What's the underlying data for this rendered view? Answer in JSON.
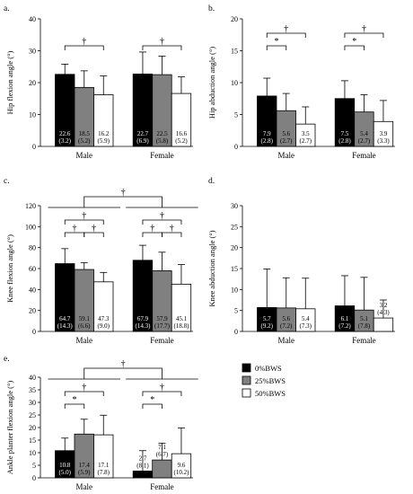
{
  "legend": {
    "series": [
      "0%BWS",
      "25%BWS",
      "50%BWS"
    ],
    "colors": [
      "#000000",
      "#808080",
      "#ffffff"
    ]
  },
  "chart_data": [
    {
      "id": "a",
      "type": "bar",
      "panel_label": "a.",
      "ylabel": "Hip flexion angle (°)",
      "ylim": [
        0,
        40
      ],
      "yticks": [
        0,
        10,
        20,
        30,
        40
      ],
      "categories": [
        "Male",
        "Female"
      ],
      "series": [
        {
          "name": "0%BWS",
          "values": [
            22.6,
            22.7
          ],
          "sd": [
            3.2,
            6.9
          ],
          "labels": [
            "22.6\n(3.2)",
            "22.7\n(6.9)"
          ]
        },
        {
          "name": "25%BWS",
          "values": [
            18.5,
            22.5
          ],
          "sd": [
            5.2,
            5.8
          ],
          "labels": [
            "18.5\n(5.2)",
            "22.5\n(5.8)"
          ]
        },
        {
          "name": "50%BWS",
          "values": [
            16.2,
            16.6
          ],
          "sd": [
            5.9,
            5.2
          ],
          "labels": [
            "16.2\n(5.9)",
            "16.6\n(5.2)"
          ]
        }
      ],
      "annotations": [
        {
          "group": 0,
          "from": 0,
          "to": 2,
          "symbol": "†",
          "level": 0
        },
        {
          "group": 1,
          "from": 0,
          "to": 2,
          "symbol": "†",
          "level": 0
        }
      ]
    },
    {
      "id": "b",
      "type": "bar",
      "panel_label": "b.",
      "ylabel": "Hip abduction angle (°)",
      "ylim": [
        0,
        20
      ],
      "yticks": [
        0,
        5,
        10,
        15,
        20
      ],
      "categories": [
        "Male",
        "Female"
      ],
      "series": [
        {
          "name": "0%BWS",
          "values": [
            7.9,
            7.5
          ],
          "sd": [
            2.8,
            2.8
          ],
          "labels": [
            "7.9\n(2.8)",
            "7.5\n(2.8)"
          ]
        },
        {
          "name": "25%BWS",
          "values": [
            5.6,
            5.4
          ],
          "sd": [
            2.7,
            2.7
          ],
          "labels": [
            "5.6\n(2.7)",
            "5.4\n(2.7)"
          ]
        },
        {
          "name": "50%BWS",
          "values": [
            3.5,
            3.9
          ],
          "sd": [
            2.7,
            3.3
          ],
          "labels": [
            "3.5\n(2.7)",
            "3.9\n(3.3)"
          ]
        }
      ],
      "annotations": [
        {
          "group": 0,
          "from": 0,
          "to": 1,
          "symbol": "*",
          "level": 0
        },
        {
          "group": 0,
          "from": 0,
          "to": 2,
          "symbol": "†",
          "level": 1
        },
        {
          "group": 1,
          "from": 0,
          "to": 1,
          "symbol": "*",
          "level": 0
        },
        {
          "group": 1,
          "from": 0,
          "to": 2,
          "symbol": "†",
          "level": 1
        }
      ]
    },
    {
      "id": "c",
      "type": "bar",
      "panel_label": "c.",
      "ylabel": "Knee flexion angle (°)",
      "ylim": [
        0,
        120
      ],
      "yticks": [
        0,
        20,
        40,
        60,
        80,
        100,
        120
      ],
      "categories": [
        "Male",
        "Female"
      ],
      "series": [
        {
          "name": "0%BWS",
          "values": [
            64.7,
            67.9
          ],
          "sd": [
            14.3,
            14.3
          ],
          "labels": [
            "64.7\n(14.3)",
            "67.9\n(14.3)"
          ]
        },
        {
          "name": "25%BWS",
          "values": [
            59.1,
            57.9
          ],
          "sd": [
            6.6,
            17.7
          ],
          "labels": [
            "59.1\n(6.6)",
            "57.9\n(17.7)"
          ]
        },
        {
          "name": "50%BWS",
          "values": [
            47.3,
            45.1
          ],
          "sd": [
            9.0,
            18.8
          ],
          "labels": [
            "47.3\n(9.0)",
            "45.1\n(18.8)"
          ]
        }
      ],
      "annotations": [
        {
          "group": 0,
          "from": 0,
          "to": 1,
          "symbol": "†",
          "level": 0
        },
        {
          "group": 0,
          "from": 1,
          "to": 2,
          "symbol": "†",
          "level": 0
        },
        {
          "group": 0,
          "from": 0,
          "to": 2,
          "symbol": "†",
          "level": 1
        },
        {
          "group": 1,
          "from": 0,
          "to": 1,
          "symbol": "†",
          "level": 0
        },
        {
          "group": 1,
          "from": 1,
          "to": 2,
          "symbol": "†",
          "level": 0
        },
        {
          "group": 1,
          "from": 0,
          "to": 2,
          "symbol": "†",
          "level": 1
        }
      ],
      "group_annotation": {
        "symbol": "†"
      }
    },
    {
      "id": "d",
      "type": "bar",
      "panel_label": "d.",
      "ylabel": "Knee abduction angle (°)",
      "ylim": [
        0,
        30
      ],
      "yticks": [
        0,
        5,
        10,
        15,
        20,
        25,
        30
      ],
      "categories": [
        "Male",
        "Female"
      ],
      "series": [
        {
          "name": "0%BWS",
          "values": [
            5.7,
            6.1
          ],
          "sd": [
            9.2,
            7.2
          ],
          "labels": [
            "5.7\n(9.2)",
            "6.1\n(7.2)"
          ]
        },
        {
          "name": "25%BWS",
          "values": [
            5.6,
            5.1
          ],
          "sd": [
            7.2,
            7.8
          ],
          "labels": [
            "5.6\n(7.2)",
            "5.1\n(7.8)"
          ]
        },
        {
          "name": "50%BWS",
          "values": [
            5.4,
            3.2
          ],
          "sd": [
            7.3,
            4.3
          ],
          "labels": [
            "5.4\n(7.3)",
            "3.2\n(4.3)"
          ]
        }
      ],
      "annotations": []
    },
    {
      "id": "e",
      "type": "bar",
      "panel_label": "e.",
      "ylabel": "Ankle planter flexion angle (°)",
      "ylim": [
        0,
        40
      ],
      "yticks": [
        0,
        5,
        10,
        15,
        20,
        25,
        30,
        35,
        40
      ],
      "categories": [
        "Male",
        "Female"
      ],
      "series": [
        {
          "name": "0%BWS",
          "values": [
            10.8,
            2.7
          ],
          "sd": [
            5.0,
            8.1
          ],
          "labels": [
            "10.8\n(5.0)",
            "2.7\n(8.1)"
          ]
        },
        {
          "name": "25%BWS",
          "values": [
            17.4,
            7.1
          ],
          "sd": [
            5.9,
            6.7
          ],
          "labels": [
            "17.4\n(5.9)",
            "7.1\n(6.7)"
          ]
        },
        {
          "name": "50%BWS",
          "values": [
            17.1,
            9.6
          ],
          "sd": [
            7.8,
            10.2
          ],
          "labels": [
            "17.1\n(7.8)",
            "9.6\n(10.2)"
          ]
        }
      ],
      "annotations": [
        {
          "group": 0,
          "from": 0,
          "to": 1,
          "symbol": "*",
          "level": 0
        },
        {
          "group": 0,
          "from": 0,
          "to": 2,
          "symbol": "†",
          "level": 1
        },
        {
          "group": 1,
          "from": 0,
          "to": 1,
          "symbol": "*",
          "level": 0
        },
        {
          "group": 1,
          "from": 0,
          "to": 2,
          "symbol": "†",
          "level": 1
        }
      ],
      "group_annotation": {
        "symbol": "†"
      }
    }
  ]
}
